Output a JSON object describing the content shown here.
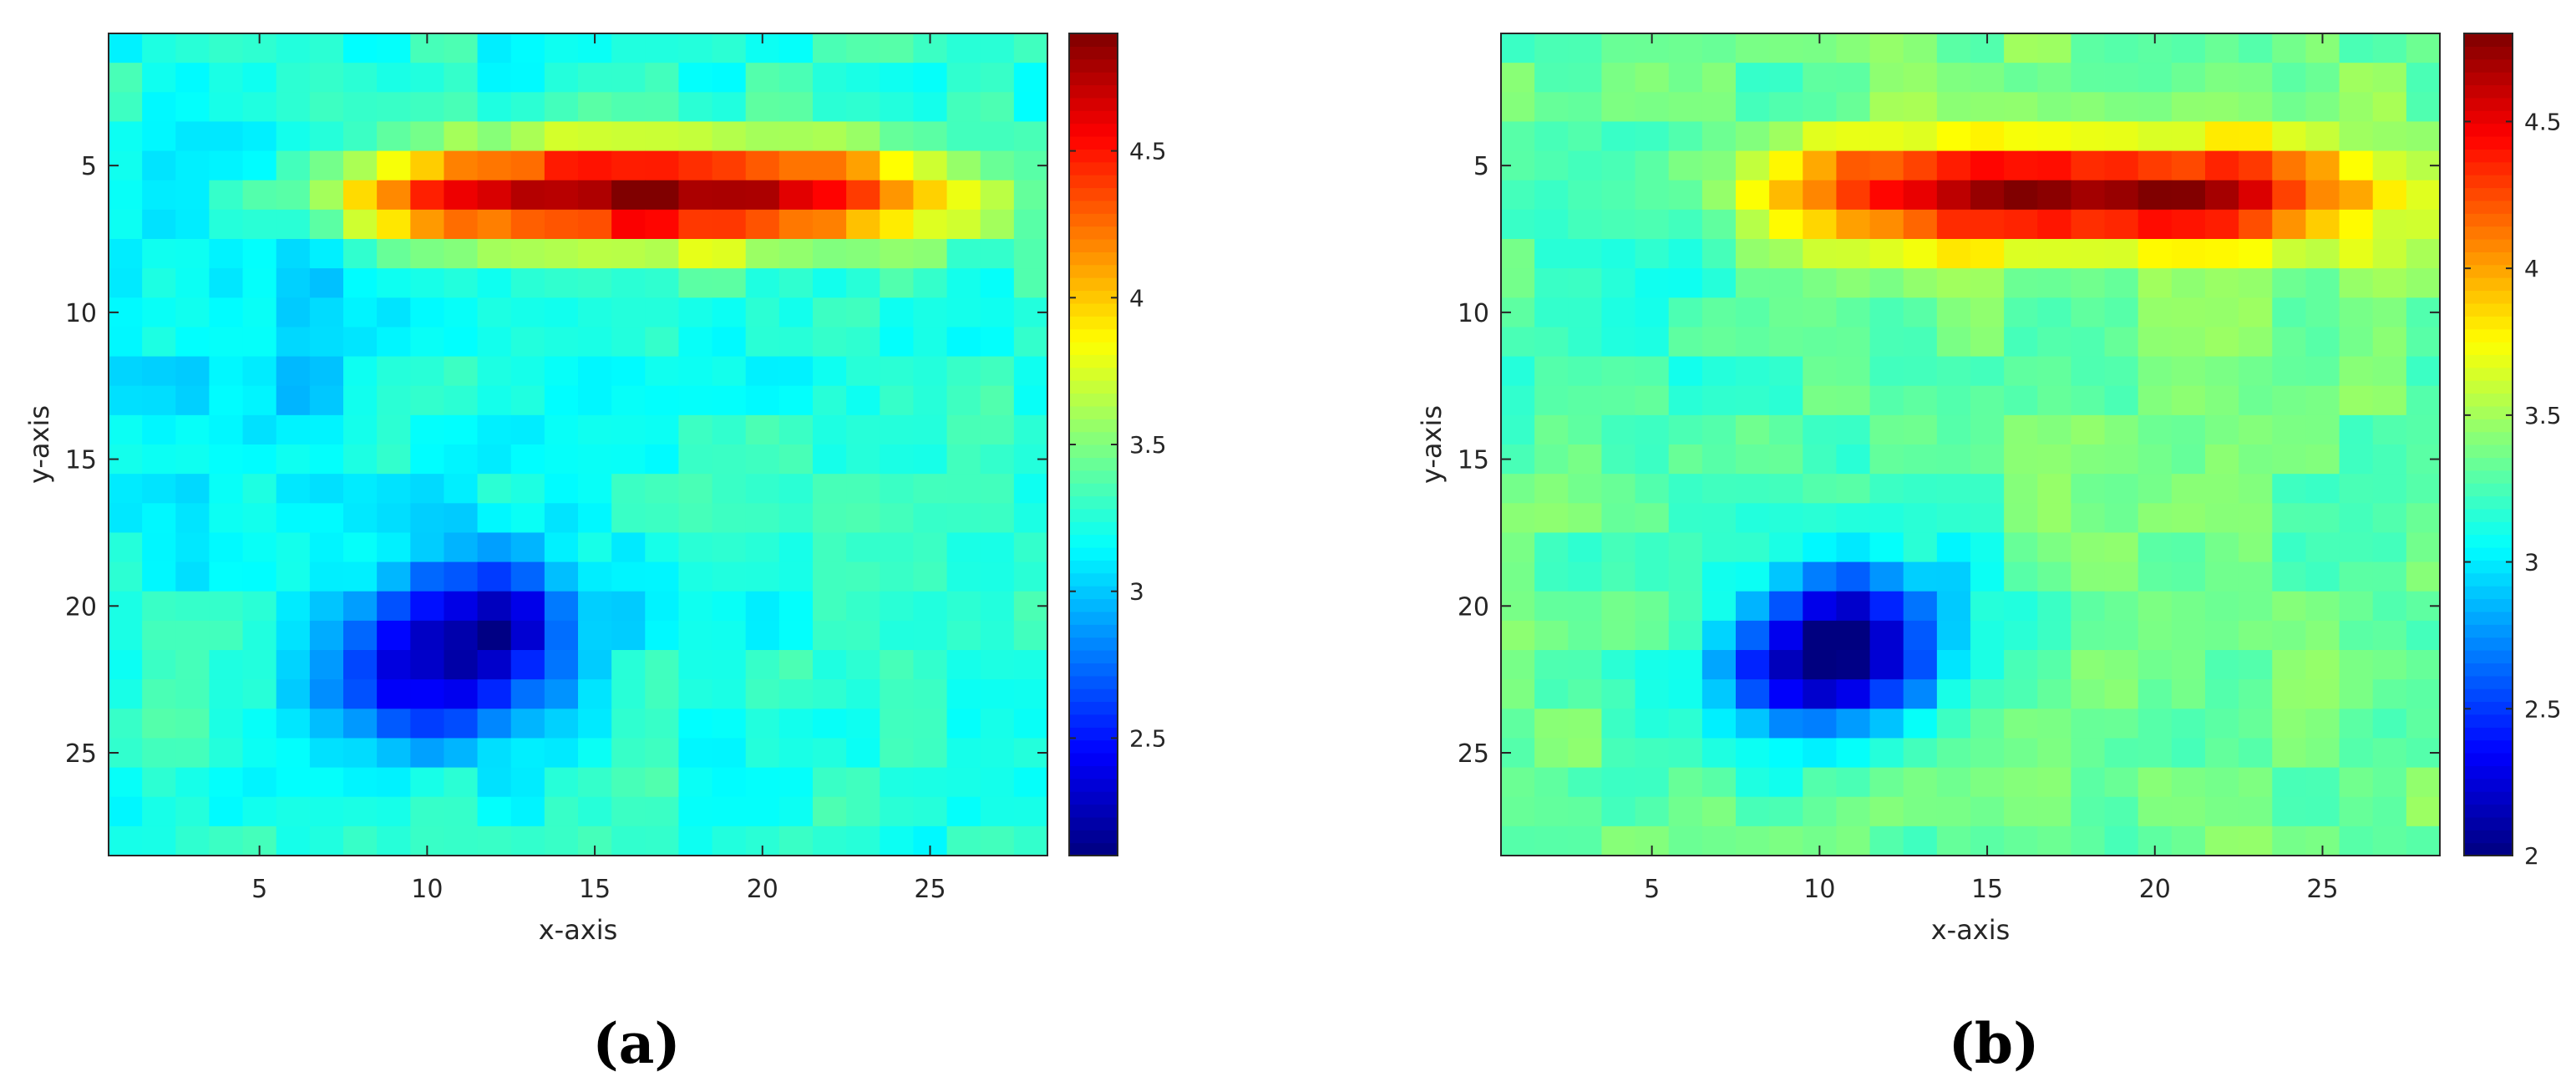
{
  "chart_data": [
    {
      "type": "heatmap",
      "panel_label": "(a)",
      "xlabel": "x-axis",
      "ylabel": "y-axis",
      "xlim": [
        0.5,
        28.5
      ],
      "ylim": [
        28.5,
        0.5
      ],
      "xticks": [
        5,
        10,
        15,
        20,
        25
      ],
      "yticks": [
        5,
        10,
        15,
        20,
        25
      ],
      "grid_size": [
        28,
        28
      ],
      "colormap": "jet",
      "clim": [
        2.1,
        4.9
      ],
      "colorbar_ticks": [
        2.5,
        3,
        3.5,
        4,
        4.5
      ],
      "features": [
        {
          "kind": "peak",
          "center_x": 16.5,
          "center_y": 6.0,
          "value": 4.9,
          "width_x": 9.0,
          "width_y": 1.8,
          "extent_x": [
            9,
            23
          ],
          "extent_y": [
            4,
            8
          ]
        },
        {
          "kind": "trough",
          "center_x": 11.0,
          "center_y": 21.5,
          "value": 2.1,
          "extent_x": [
            4,
            15
          ],
          "extent_y": [
            16,
            25
          ]
        },
        {
          "kind": "background",
          "value": 3.25,
          "left_region_value": 3.05
        }
      ]
    },
    {
      "type": "heatmap",
      "panel_label": "(b)",
      "xlabel": "x-axis",
      "ylabel": "y-axis",
      "xlim": [
        0.5,
        28.5
      ],
      "ylim": [
        28.5,
        0.5
      ],
      "xticks": [
        5,
        10,
        15,
        20,
        25
      ],
      "yticks": [
        5,
        10,
        15,
        20,
        25
      ],
      "grid_size": [
        28,
        28
      ],
      "colormap": "jet",
      "clim": [
        2.0,
        4.8
      ],
      "colorbar_ticks": [
        2,
        2.5,
        3,
        3.5,
        4,
        4.5
      ],
      "features": [
        {
          "kind": "peak",
          "center_x": 17.5,
          "center_y": 6.0,
          "value": 4.8,
          "width_x": 9.0,
          "width_y": 1.8,
          "extent_x": [
            10,
            24
          ],
          "extent_y": [
            3,
            8
          ]
        },
        {
          "kind": "trough",
          "center_x": 10.5,
          "center_y": 21.5,
          "value": 2.0,
          "extent_x": [
            5,
            15
          ],
          "extent_y": [
            16,
            25
          ]
        },
        {
          "kind": "background",
          "value": 3.35,
          "left_region_value": 3.2
        }
      ]
    }
  ]
}
